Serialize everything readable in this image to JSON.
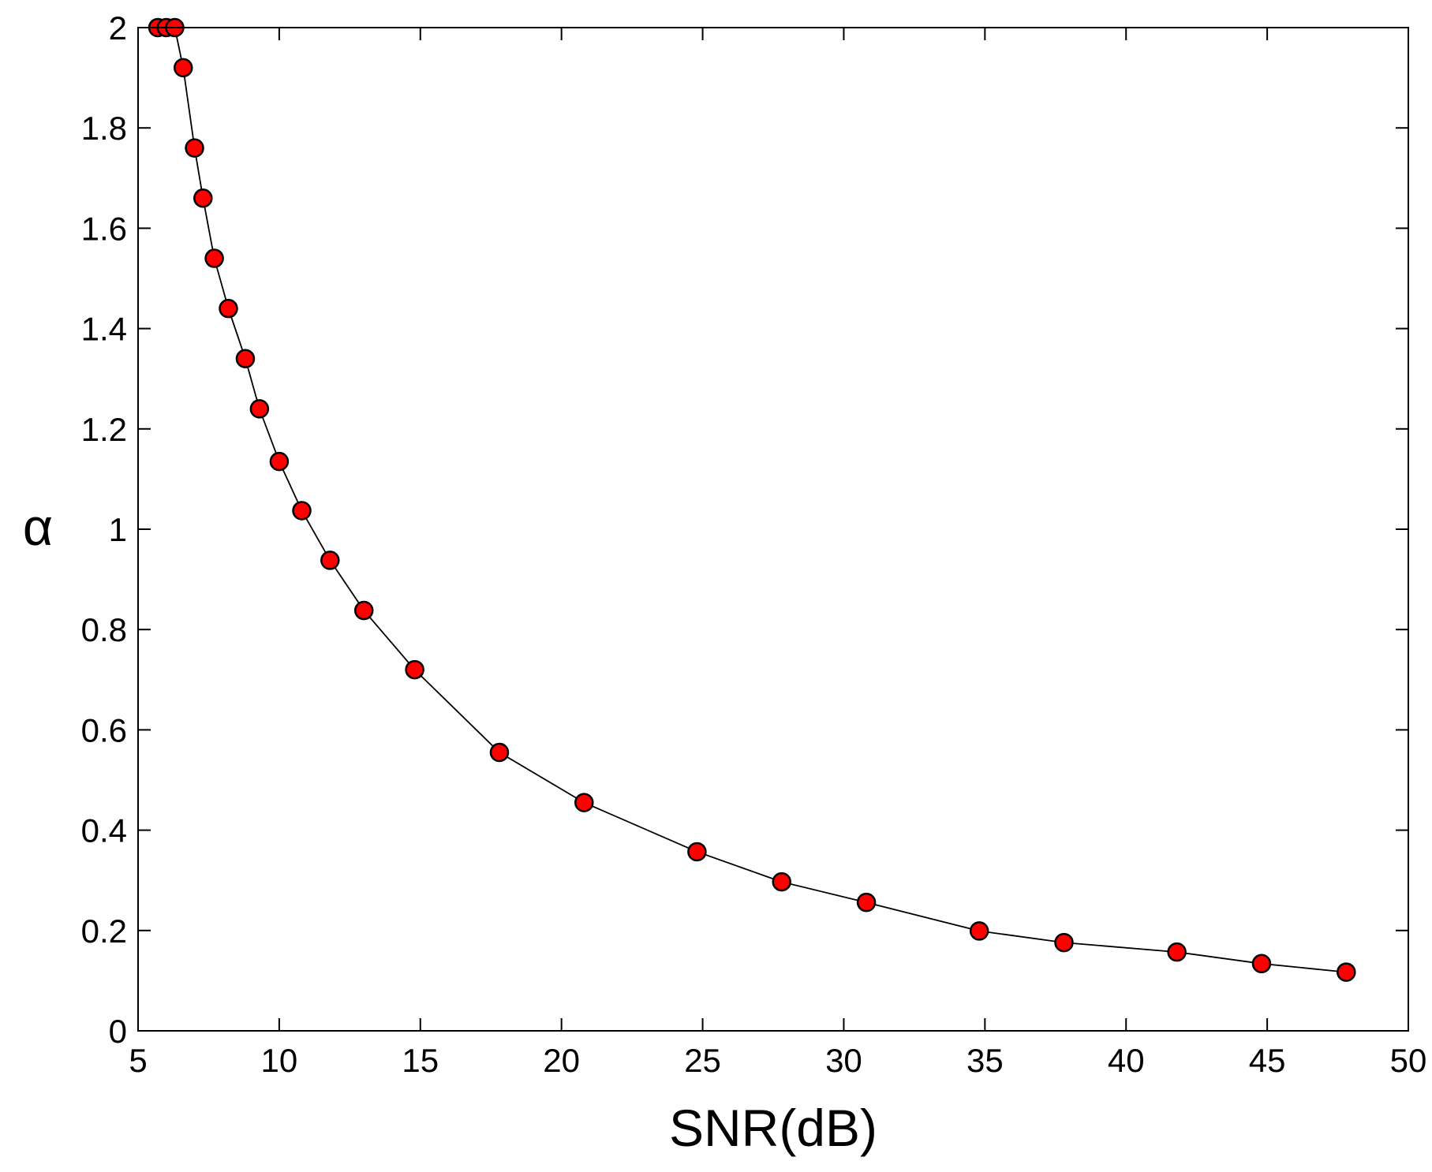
{
  "chart_data": {
    "type": "line",
    "title": "",
    "xlabel": "SNR(dB)",
    "ylabel": "α",
    "xlim": [
      5,
      50
    ],
    "ylim": [
      0,
      2
    ],
    "xticks": [
      "5",
      "10",
      "15",
      "20",
      "25",
      "30",
      "35",
      "40",
      "45",
      "50"
    ],
    "yticks": [
      "0",
      "0.2",
      "0.4",
      "0.6",
      "0.8",
      "1",
      "1.2",
      "1.4",
      "1.6",
      "1.8",
      "2"
    ],
    "grid": false,
    "legend": "none",
    "series": [
      {
        "line_color": "#000000",
        "marker": "circle",
        "marker_color": "#ff0000",
        "marker_edge_color": "#000000",
        "x": [
          5.7,
          6.0,
          6.3,
          6.6,
          7.0,
          7.3,
          7.7,
          8.2,
          8.8,
          9.3,
          10.0,
          10.8,
          11.8,
          13.0,
          14.8,
          17.8,
          20.8,
          24.8,
          27.8,
          30.8,
          34.8,
          37.8,
          41.8,
          44.8,
          47.8
        ],
        "y": [
          2.0,
          2.0,
          2.0,
          1.92,
          1.76,
          1.66,
          1.54,
          1.44,
          1.34,
          1.24,
          1.135,
          1.037,
          0.938,
          0.838,
          0.72,
          0.555,
          0.455,
          0.357,
          0.297,
          0.256,
          0.199,
          0.176,
          0.157,
          0.134,
          0.117
        ]
      }
    ]
  }
}
